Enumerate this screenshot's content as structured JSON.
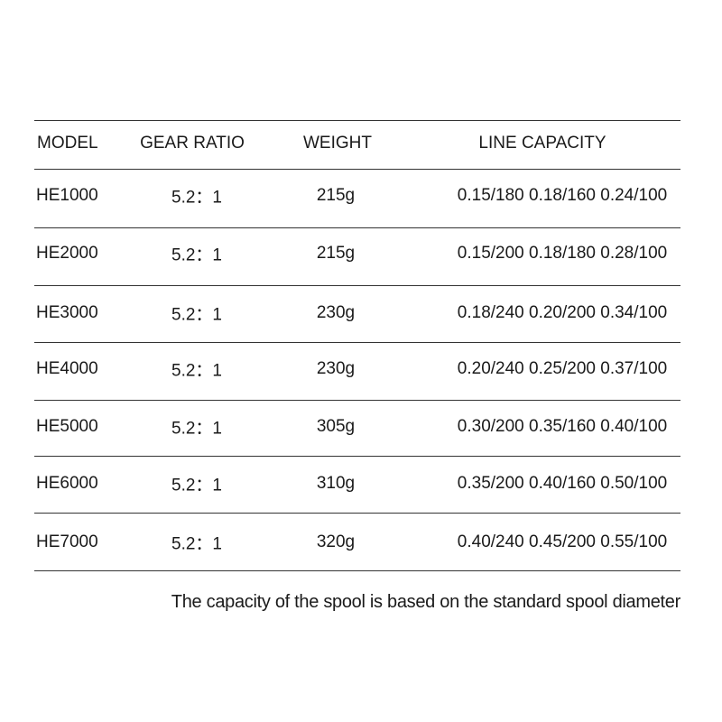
{
  "headers": [
    "MODEL",
    "GEAR RATIO",
    "WEIGHT",
    "LINE CAPACITY"
  ],
  "rows": [
    [
      "HE1000",
      "5.2：1",
      "215g",
      "0.15/180 0.18/160 0.24/100"
    ],
    [
      "HE2000",
      "5.2：1",
      "215g",
      "0.15/200 0.18/180 0.28/100"
    ],
    [
      "HE3000",
      "5.2：1",
      "230g",
      "0.18/240 0.20/200 0.34/100"
    ],
    [
      "HE4000",
      "5.2：1",
      "230g",
      "0.20/240 0.25/200 0.37/100"
    ],
    [
      "HE5000",
      "5.2：1",
      "305g",
      "0.30/200 0.35/160 0.40/100"
    ],
    [
      "HE6000",
      "5.2：1",
      "310g",
      "0.35/200 0.40/160 0.50/100"
    ],
    [
      "HE7000",
      "5.2：1",
      "320g",
      "0.40/240 0.45/200 0.55/100"
    ]
  ],
  "footnote": "The capacity of the spool is based on the standard spool diameter"
}
